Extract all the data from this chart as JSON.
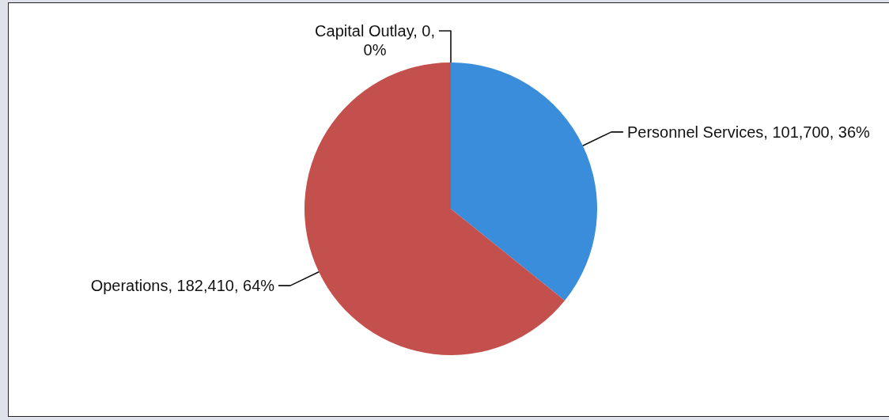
{
  "chart_data": {
    "type": "pie",
    "categories": [
      "Personnel Services",
      "Operations",
      "Capital Outlay"
    ],
    "values": [
      101700,
      182410,
      0
    ],
    "colors": [
      "#3a8ddb",
      "#c4504d",
      "#9bbb59"
    ],
    "value_labels": [
      "101,700, 36%",
      "182,410, 64%",
      "0, 0%"
    ]
  }
}
